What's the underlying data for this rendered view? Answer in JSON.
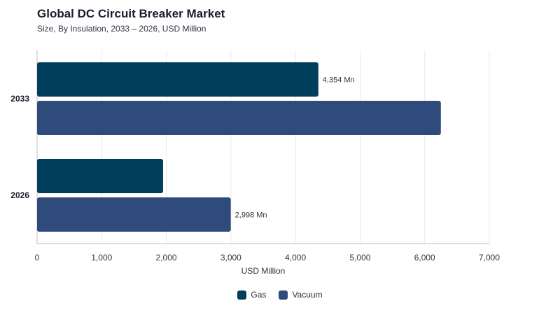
{
  "chart_data": {
    "type": "bar",
    "orientation": "horizontal",
    "title": "Global DC Circuit Breaker Market",
    "subtitle": "Size, By Insulation, 2033 – 2026, USD Million",
    "xlabel": "USD Million",
    "ylabel": "",
    "xlim": [
      0,
      7000
    ],
    "x_ticks": [
      "0",
      "1,000",
      "2,000",
      "3,000",
      "4,000",
      "5,000",
      "6,000",
      "7,000"
    ],
    "x_tick_values": [
      0,
      1000,
      2000,
      3000,
      4000,
      5000,
      6000,
      7000
    ],
    "categories": [
      "2033",
      "2026"
    ],
    "series": [
      {
        "name": "Gas",
        "values": [
          4354,
          1950
        ],
        "color": "#003f5c",
        "data_labels": [
          "4,354 Mn",
          ""
        ]
      },
      {
        "name": "Vacuum",
        "values": [
          6250,
          2998
        ],
        "color": "#2f4b7c",
        "data_labels": [
          "",
          "2,998 Mn"
        ]
      }
    ],
    "grid": true,
    "legend_position": "bottom-center"
  }
}
